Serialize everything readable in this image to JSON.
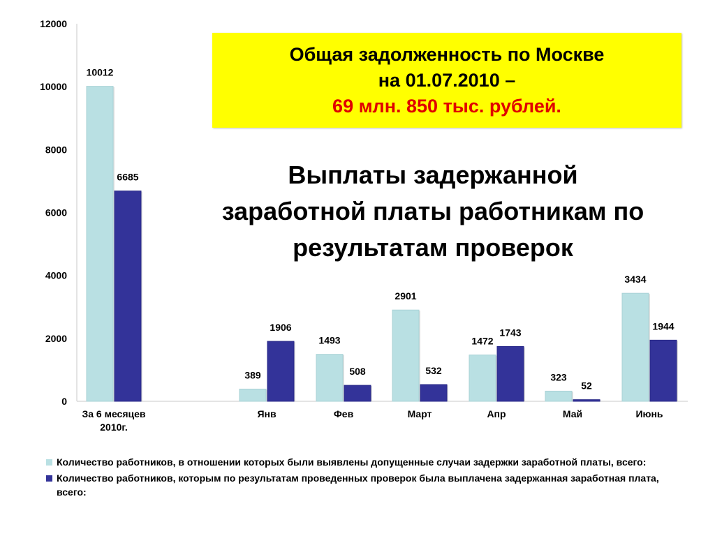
{
  "header": {
    "debt_line1": "Общая задолженность  по Москве",
    "debt_line2": "на 01.07.2010 –",
    "debt_amount": "69 млн. 850 тыс. рублей.",
    "headline_line1": "Выплаты задержанной",
    "headline_line2": "заработной платы работникам по",
    "headline_line3": "результатам проверок"
  },
  "colors": {
    "series1": "#b9e0e3",
    "series2": "#333399",
    "debt_box": "#ffff00",
    "debt_amount": "#e00000"
  },
  "chart_data": {
    "type": "bar",
    "categories": [
      "За 6 месяцев 2010г.",
      "Янв",
      "Фев",
      "Март",
      "Апр",
      "Май",
      "Июнь"
    ],
    "series": [
      {
        "name": "Количество работников, в отношении которых были выявлены допущенные случаи задержки заработной платы, всего:",
        "values": [
          10012,
          389,
          1493,
          2901,
          1472,
          323,
          3434
        ]
      },
      {
        "name": "Количество работников, которым по результатам проведенных проверок была выплачена задержанная заработная плата, всего:",
        "values": [
          6685,
          1906,
          508,
          532,
          1743,
          52,
          1944
        ]
      }
    ],
    "ylim": [
      0,
      12000
    ],
    "yticks": [
      "0",
      "2000",
      "4000",
      "6000",
      "8000",
      "10000",
      "12000"
    ],
    "grid": false,
    "legend_position": "bottom"
  }
}
